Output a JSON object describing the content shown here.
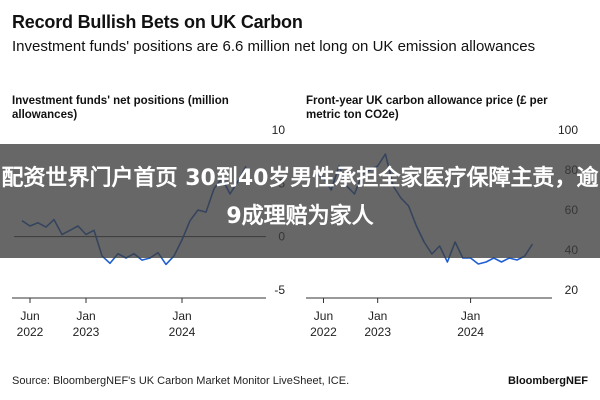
{
  "title": "Record Bullish Bets on UK Carbon",
  "subtitle": "Investment funds' positions are 6.6 million net long on UK emission allowances",
  "chart_data": [
    {
      "type": "line",
      "title": "Investment funds' net positions (million allowances)",
      "x_tick_labels": [
        [
          "Jun",
          "2022"
        ],
        [
          "Jan",
          "2023"
        ],
        [
          "Jan",
          "2024"
        ]
      ],
      "y_tick_labels": [
        "10",
        "5",
        "0",
        "-5"
      ],
      "ylim": [
        -5,
        10
      ],
      "xlim": [
        "2022-04",
        "2024-11"
      ],
      "zero_line": true,
      "grid": false,
      "series": [
        {
          "color": "#1f5fd1",
          "points": [
            [
              "2022-05",
              1.5
            ],
            [
              "2022-06",
              1.0
            ],
            [
              "2022-07",
              1.3
            ],
            [
              "2022-08",
              0.9
            ],
            [
              "2022-09",
              1.6
            ],
            [
              "2022-10",
              0.2
            ],
            [
              "2022-11",
              0.6
            ],
            [
              "2022-12",
              1.0
            ],
            [
              "2023-01",
              0.2
            ],
            [
              "2023-02",
              0.6
            ],
            [
              "2023-03",
              -1.8
            ],
            [
              "2023-04",
              -2.5
            ],
            [
              "2023-05",
              -1.6
            ],
            [
              "2023-06",
              -2.0
            ],
            [
              "2023-07",
              -1.6
            ],
            [
              "2023-08",
              -2.2
            ],
            [
              "2023-09",
              -2.0
            ],
            [
              "2023-10",
              -1.5
            ],
            [
              "2023-11",
              -2.6
            ],
            [
              "2023-12",
              -1.8
            ],
            [
              "2024-01",
              -0.3
            ],
            [
              "2024-02",
              1.5
            ],
            [
              "2024-03",
              2.5
            ],
            [
              "2024-04",
              2.3
            ],
            [
              "2024-05",
              4.5
            ],
            [
              "2024-06",
              5.5
            ],
            [
              "2024-07",
              4.0
            ],
            [
              "2024-08",
              5.2
            ],
            [
              "2024-09",
              6.6
            ]
          ]
        }
      ]
    },
    {
      "type": "line",
      "title": "Front-year UK carbon allowance price (£ per metric ton CO2e)",
      "x_tick_labels": [
        [
          "Jun",
          "2022"
        ],
        [
          "Jan",
          "2023"
        ],
        [
          "Jan",
          "2024"
        ]
      ],
      "y_tick_labels": [
        "100",
        "80",
        "60",
        "40",
        "20"
      ],
      "ylim": [
        20,
        100
      ],
      "xlim": [
        "2022-04",
        "2024-11"
      ],
      "zero_line": false,
      "grid": false,
      "series": [
        {
          "color": "#1f5fd1",
          "points": [
            [
              "2022-05",
              78
            ],
            [
              "2022-06",
              76
            ],
            [
              "2022-07",
              70
            ],
            [
              "2022-08",
              82
            ],
            [
              "2022-09",
              72
            ],
            [
              "2022-10",
              68
            ],
            [
              "2022-11",
              78
            ],
            [
              "2022-12",
              80
            ],
            [
              "2023-01",
              82
            ],
            [
              "2023-02",
              88
            ],
            [
              "2023-03",
              72
            ],
            [
              "2023-04",
              66
            ],
            [
              "2023-05",
              62
            ],
            [
              "2023-06",
              52
            ],
            [
              "2023-07",
              44
            ],
            [
              "2023-08",
              38
            ],
            [
              "2023-09",
              42
            ],
            [
              "2023-10",
              34
            ],
            [
              "2023-11",
              44
            ],
            [
              "2023-12",
              36
            ],
            [
              "2024-01",
              36
            ],
            [
              "2024-02",
              33
            ],
            [
              "2024-03",
              34
            ],
            [
              "2024-04",
              36
            ],
            [
              "2024-05",
              34
            ],
            [
              "2024-06",
              36
            ],
            [
              "2024-07",
              35
            ],
            [
              "2024-08",
              37
            ],
            [
              "2024-09",
              43
            ]
          ]
        }
      ]
    }
  ],
  "source": "Source: BloombergNEF's UK Carbon Market Monitor LiveSheet, ICE.",
  "brand": "BloombergNEF",
  "overlay_text": "配资世界门户首页 30到40岁男性承担全家医疗保障主责，逾9成理赔为家人"
}
